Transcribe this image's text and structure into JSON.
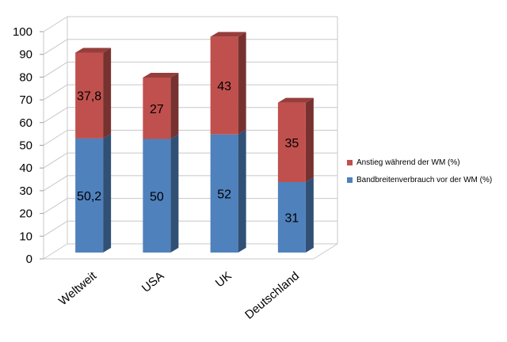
{
  "chart_data": {
    "type": "bar",
    "stacked": true,
    "style": "3d",
    "categories": [
      "Weltweit",
      "USA",
      "UK",
      "Deutschland"
    ],
    "series": [
      {
        "name": "Bandbreitenverbrauch vor der WM (%)",
        "values": [
          50.2,
          50,
          52,
          31
        ],
        "labels": [
          "50,2",
          "50",
          "52",
          "31"
        ],
        "color": "#4f81bd"
      },
      {
        "name": "Anstieg während der WM (%)",
        "values": [
          37.8,
          27,
          43,
          35
        ],
        "labels": [
          "37,8",
          "27",
          "43",
          "35"
        ],
        "color": "#c0504d"
      }
    ],
    "ylim": [
      0,
      100
    ],
    "yticks": [
      0,
      10,
      20,
      30,
      40,
      50,
      60,
      70,
      80,
      90,
      100
    ],
    "grid": true,
    "legend": "right"
  }
}
